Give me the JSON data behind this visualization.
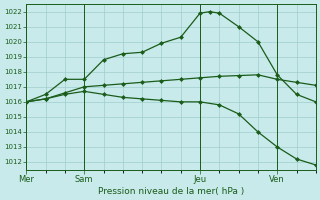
{
  "xlabel": "Pression niveau de la mer( hPa )",
  "bg_color": "#c8eaea",
  "grid_color": "#a0cccc",
  "line_color": "#1a5c1a",
  "ylim": [
    1011.5,
    1022.5
  ],
  "yticks": [
    1012,
    1013,
    1014,
    1015,
    1016,
    1017,
    1018,
    1019,
    1020,
    1021,
    1022
  ],
  "day_labels": [
    "Mer",
    "Sam",
    "Jeu",
    "Ven"
  ],
  "day_positions": [
    0,
    3,
    9,
    13
  ],
  "xlim": [
    0,
    15
  ],
  "line_high_x": [
    0,
    1,
    2,
    3,
    4,
    5,
    6,
    7,
    8,
    9,
    9.5,
    10,
    11,
    12,
    13,
    14,
    15
  ],
  "line_high_y": [
    1016.0,
    1016.5,
    1017.5,
    1017.5,
    1018.8,
    1019.2,
    1019.3,
    1019.9,
    1020.3,
    1021.9,
    1022.0,
    1021.9,
    1021.0,
    1020.0,
    1017.8,
    1016.5,
    1016.0
  ],
  "line_mid_x": [
    0,
    1,
    2,
    3,
    4,
    5,
    6,
    7,
    8,
    9,
    10,
    11,
    12,
    13,
    14,
    15
  ],
  "line_mid_y": [
    1016.0,
    1016.2,
    1016.6,
    1017.0,
    1017.1,
    1017.2,
    1017.3,
    1017.4,
    1017.5,
    1017.6,
    1017.7,
    1017.75,
    1017.8,
    1017.5,
    1017.3,
    1017.1
  ],
  "line_low_x": [
    0,
    1,
    2,
    3,
    4,
    5,
    6,
    7,
    8,
    9,
    10,
    11,
    12,
    13,
    14,
    15
  ],
  "line_low_y": [
    1016.0,
    1016.2,
    1016.5,
    1016.7,
    1016.5,
    1016.3,
    1016.2,
    1016.1,
    1016.0,
    1016.0,
    1015.8,
    1015.2,
    1014.0,
    1013.0,
    1012.2,
    1011.8
  ],
  "marker_high_x": [
    0,
    1,
    2,
    3,
    4,
    5,
    6,
    7,
    8,
    9,
    9.5,
    10,
    11,
    12,
    13,
    14,
    15
  ],
  "marker_high_y": [
    1016.0,
    1016.5,
    1017.5,
    1017.5,
    1018.8,
    1019.2,
    1019.3,
    1019.9,
    1020.3,
    1021.9,
    1022.0,
    1021.9,
    1021.0,
    1020.0,
    1017.8,
    1016.5,
    1016.0
  ],
  "marker_mid_x": [
    0,
    1,
    2,
    3,
    4,
    5,
    6,
    7,
    8,
    9,
    10,
    11,
    12,
    13,
    14,
    15
  ],
  "marker_mid_y": [
    1016.0,
    1016.2,
    1016.6,
    1017.0,
    1017.1,
    1017.2,
    1017.3,
    1017.4,
    1017.5,
    1017.6,
    1017.7,
    1017.75,
    1017.8,
    1017.5,
    1017.3,
    1017.1
  ],
  "marker_low_x": [
    0,
    1,
    2,
    3,
    4,
    5,
    6,
    7,
    8,
    9,
    10,
    11,
    12,
    13,
    14,
    15
  ],
  "marker_low_y": [
    1016.0,
    1016.2,
    1016.5,
    1016.7,
    1016.5,
    1016.3,
    1016.2,
    1016.1,
    1016.0,
    1016.0,
    1015.8,
    1015.2,
    1014.0,
    1013.0,
    1012.2,
    1011.8
  ]
}
